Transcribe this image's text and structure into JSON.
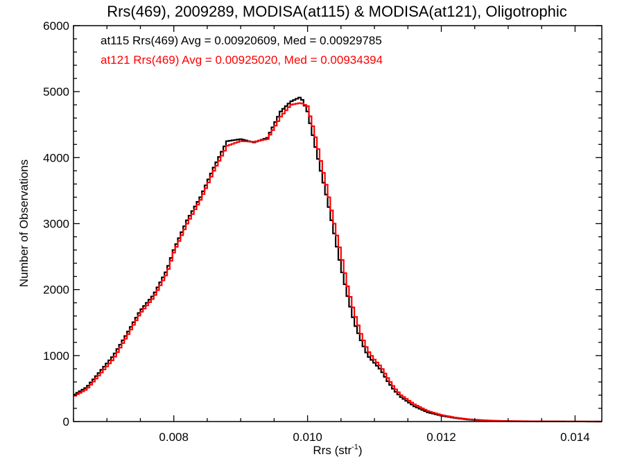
{
  "chart_data": {
    "type": "line",
    "step": true,
    "title": "Rrs(469), 2009289, MODISA(at115) & MODISA(at121), Oligotrophic",
    "xlabel_main": "Rrs (str",
    "xlabel_sup": "-1",
    "xlabel_close": ")",
    "ylabel": "Number of Observations",
    "xlim": [
      0.0065,
      0.0144
    ],
    "ylim": [
      0,
      6000
    ],
    "x_ticks": [
      0.008,
      0.01,
      0.012,
      0.014
    ],
    "x_tick_labels": [
      "0.008",
      "0.010",
      "0.012",
      "0.014"
    ],
    "y_ticks": [
      0,
      1000,
      2000,
      3000,
      4000,
      5000,
      6000
    ],
    "y_tick_labels": [
      "0",
      "1000",
      "2000",
      "3000",
      "4000",
      "5000",
      "6000"
    ],
    "grid": false,
    "series": [
      {
        "name": "at115",
        "color": "#000000",
        "stats_text": "at115 Rrs(469) Avg = 0.00920609, Med = 0.00929785",
        "points": [
          [
            0.0065,
            400
          ],
          [
            0.0067,
            520
          ],
          [
            0.0069,
            760
          ],
          [
            0.0071,
            1000
          ],
          [
            0.0073,
            1330
          ],
          [
            0.0075,
            1680
          ],
          [
            0.0077,
            1920
          ],
          [
            0.0079,
            2300
          ],
          [
            0.008,
            2600
          ],
          [
            0.0082,
            3050
          ],
          [
            0.0084,
            3400
          ],
          [
            0.0086,
            3850
          ],
          [
            0.0088,
            4250
          ],
          [
            0.009,
            4280
          ],
          [
            0.0092,
            4230
          ],
          [
            0.0094,
            4300
          ],
          [
            0.0096,
            4700
          ],
          [
            0.00975,
            4850
          ],
          [
            0.0099,
            4920
          ],
          [
            0.01,
            4700
          ],
          [
            0.0101,
            4250
          ],
          [
            0.0102,
            3800
          ],
          [
            0.0103,
            3350
          ],
          [
            0.0104,
            2850
          ],
          [
            0.0105,
            2350
          ],
          [
            0.0106,
            1900
          ],
          [
            0.0107,
            1500
          ],
          [
            0.0108,
            1230
          ],
          [
            0.0109,
            1000
          ],
          [
            0.011,
            890
          ],
          [
            0.0111,
            780
          ],
          [
            0.0112,
            610
          ],
          [
            0.0113,
            470
          ],
          [
            0.0114,
            370
          ],
          [
            0.0116,
            230
          ],
          [
            0.0118,
            140
          ],
          [
            0.012,
            90
          ],
          [
            0.0122,
            55
          ],
          [
            0.0124,
            30
          ],
          [
            0.0126,
            18
          ],
          [
            0.0128,
            10
          ],
          [
            0.013,
            6
          ],
          [
            0.0134,
            3
          ],
          [
            0.0138,
            1
          ],
          [
            0.0144,
            0
          ]
        ]
      },
      {
        "name": "at121",
        "color": "#ff0000",
        "stats_text": "at121 Rrs(469) Avg = 0.00925020, Med = 0.00934394",
        "points": [
          [
            0.0065,
            380
          ],
          [
            0.0067,
            490
          ],
          [
            0.0069,
            720
          ],
          [
            0.0071,
            950
          ],
          [
            0.0073,
            1290
          ],
          [
            0.0075,
            1640
          ],
          [
            0.0077,
            1880
          ],
          [
            0.0079,
            2250
          ],
          [
            0.008,
            2560
          ],
          [
            0.0082,
            3000
          ],
          [
            0.0084,
            3360
          ],
          [
            0.0086,
            3800
          ],
          [
            0.0088,
            4180
          ],
          [
            0.009,
            4250
          ],
          [
            0.0092,
            4240
          ],
          [
            0.0094,
            4280
          ],
          [
            0.0096,
            4620
          ],
          [
            0.00975,
            4800
          ],
          [
            0.0099,
            4830
          ],
          [
            0.01,
            4780
          ],
          [
            0.0101,
            4400
          ],
          [
            0.0102,
            3950
          ],
          [
            0.0103,
            3500
          ],
          [
            0.0104,
            3000
          ],
          [
            0.0105,
            2550
          ],
          [
            0.0106,
            2050
          ],
          [
            0.0107,
            1650
          ],
          [
            0.0108,
            1330
          ],
          [
            0.0109,
            1080
          ],
          [
            0.011,
            940
          ],
          [
            0.0111,
            830
          ],
          [
            0.0112,
            660
          ],
          [
            0.0113,
            510
          ],
          [
            0.0114,
            400
          ],
          [
            0.0116,
            260
          ],
          [
            0.0118,
            160
          ],
          [
            0.012,
            100
          ],
          [
            0.0122,
            62
          ],
          [
            0.0124,
            36
          ],
          [
            0.0126,
            22
          ],
          [
            0.0128,
            13
          ],
          [
            0.013,
            8
          ],
          [
            0.0134,
            4
          ],
          [
            0.0138,
            2
          ],
          [
            0.0144,
            0
          ]
        ]
      }
    ]
  }
}
